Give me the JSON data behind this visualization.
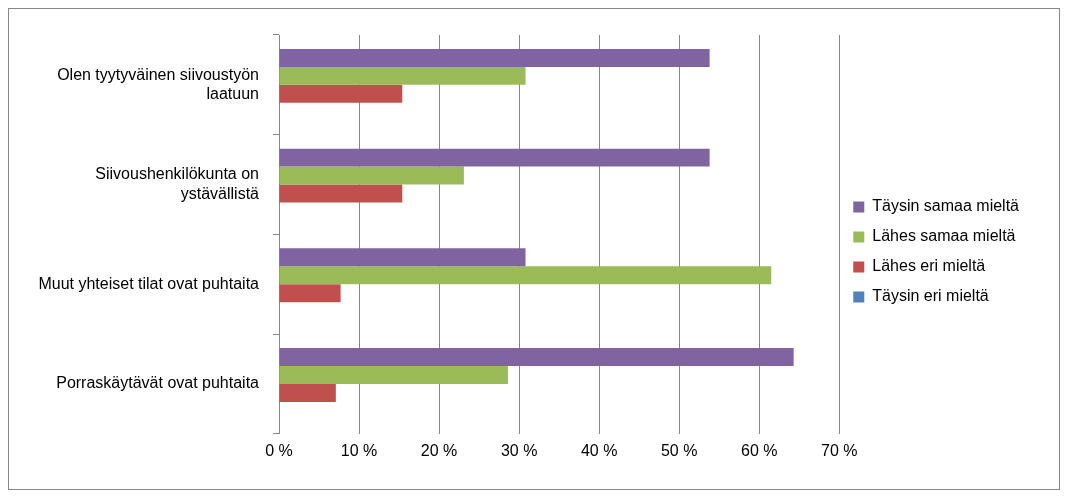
{
  "chart_data": {
    "type": "bar",
    "orientation": "horizontal",
    "categories": [
      "Olen tyytyväinen siivoustyön laatuun",
      "Siivoushenkilökunta on ystävällistä",
      "Muut yhteiset tilat ovat puhtaita",
      "Porraskäytävät ovat puhtaita"
    ],
    "series": [
      {
        "name": "Täysin samaa mieltä",
        "color": "#8064a2",
        "values": [
          53.8,
          53.8,
          30.8,
          64.3
        ]
      },
      {
        "name": "Lähes samaa mieltä",
        "color": "#9bbb59",
        "values": [
          30.8,
          23.1,
          61.5,
          28.6
        ]
      },
      {
        "name": "Lähes eri mieltä",
        "color": "#c0504d",
        "values": [
          15.4,
          15.4,
          7.7,
          7.1
        ]
      },
      {
        "name": "Täysin eri mieltä",
        "color": "#4f81bd",
        "values": [
          0,
          0,
          0,
          0
        ]
      }
    ],
    "xlim": [
      0,
      70
    ],
    "xticks": [
      {
        "value": 0,
        "label": "0 %"
      },
      {
        "value": 10,
        "label": "10 %"
      },
      {
        "value": 20,
        "label": "20 %"
      },
      {
        "value": 30,
        "label": "30 %"
      },
      {
        "value": 40,
        "label": "40 %"
      },
      {
        "value": 50,
        "label": "50 %"
      },
      {
        "value": 60,
        "label": "60 %"
      },
      {
        "value": 70,
        "label": "70 %"
      }
    ],
    "grid": "x",
    "legend": "right"
  }
}
